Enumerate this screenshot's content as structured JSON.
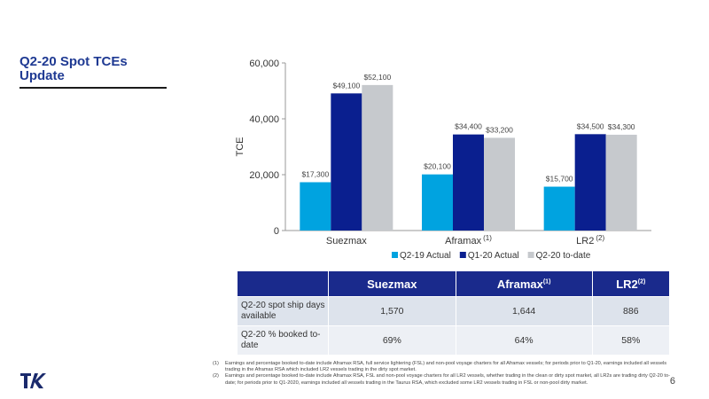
{
  "header": {
    "title": "Q2-20 Spot TCEs Update"
  },
  "chart_data": {
    "type": "bar",
    "categories": [
      "Suezmax",
      "Aframax",
      "LR2"
    ],
    "category_sups": [
      "",
      "(1)",
      "(2)"
    ],
    "series": [
      {
        "name": "Q2-19 Actual",
        "values": [
          17300,
          20100,
          15700
        ],
        "labels": [
          "$17,300",
          "$20,100",
          "$15,700"
        ],
        "color": "#00a3e0"
      },
      {
        "name": "Q1-20 Actual",
        "values": [
          49100,
          34400,
          34500
        ],
        "labels": [
          "$49,100",
          "$34,400",
          "$34,500"
        ],
        "color": "#0a1f8f"
      },
      {
        "name": "Q2-20 to-date",
        "values": [
          52100,
          33200,
          34300
        ],
        "labels": [
          "$52,100",
          "$33,200",
          "$34,300"
        ],
        "color": "#c6c9cd"
      }
    ],
    "ylabel": "TCE",
    "ylim": [
      0,
      60000
    ],
    "yticks": [
      0,
      20000,
      40000,
      60000
    ],
    "ytick_labels": [
      "0",
      "20,000",
      "40,000",
      "60,000"
    ],
    "legend": "bottom",
    "grid": false
  },
  "table": {
    "headers": [
      "",
      "Suezmax",
      "Aframax",
      "LR2"
    ],
    "header_sups": [
      "",
      "",
      "(1)",
      "(2)"
    ],
    "rows": [
      {
        "label": "Q2-20 spot ship days available",
        "values": [
          "1,570",
          "1,644",
          "886"
        ]
      },
      {
        "label": "Q2-20 % booked to-date",
        "values": [
          "69%",
          "64%",
          "58%"
        ]
      }
    ]
  },
  "footnotes": [
    {
      "num": "(1)",
      "text": "Earnings and percentage booked to-date include Aframax RSA, full service lightering (FSL) and non-pool voyage charters for all Aframax vessels; for periods prior to Q1-20, earnings included all vessels trading in the Aframax RSA which included LR2 vessels trading in the dirty spot market."
    },
    {
      "num": "(2)",
      "text": "Earnings and percentage booked to-date include Aframax RSA, FSL and non-pool voyage charters for all LR2 vessels, whether trading in the clean or dirty spot market, all LR2s are trading dirty Q2-20 to-date; for periods prior to Q1-2020, earnings included all vessels trading in the Taurus RSA, which excluded some LR2 vessels trading in FSL or non-pool dirty market."
    }
  ],
  "footer": {
    "page_number": "6",
    "logo_icon": "teekay-logo-icon"
  }
}
